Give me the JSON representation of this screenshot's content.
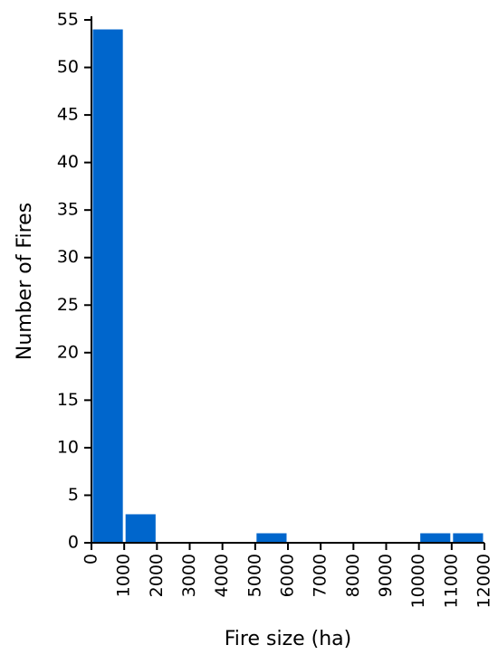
{
  "chart_data": {
    "type": "histogram",
    "xlabel": "Fire size (ha)",
    "ylabel": "Number of Fires",
    "bins": [
      0,
      1000,
      2000,
      3000,
      4000,
      5000,
      6000,
      7000,
      8000,
      9000,
      10000,
      11000,
      12000
    ],
    "counts": [
      54,
      3,
      0,
      0,
      0,
      1,
      0,
      0,
      0,
      0,
      1,
      1
    ],
    "color": "#0066cc",
    "xlim": [
      0,
      12000
    ],
    "ylim": [
      0,
      55
    ],
    "xticks": [
      0,
      1000,
      2000,
      3000,
      4000,
      5000,
      6000,
      7000,
      8000,
      9000,
      10000,
      11000,
      12000
    ],
    "yticks": [
      0,
      5,
      10,
      15,
      20,
      25,
      30,
      35,
      40,
      45,
      50,
      55
    ]
  }
}
